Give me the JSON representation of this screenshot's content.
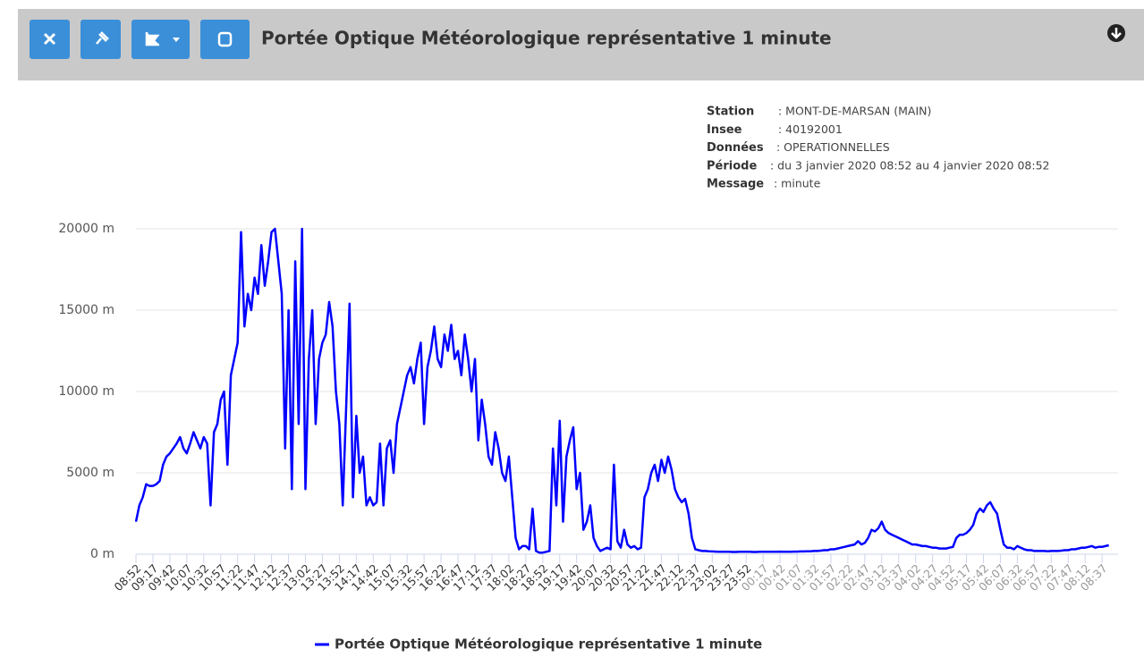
{
  "header": {
    "title": "Portée Optique Météorologique représentative 1 minute"
  },
  "info": [
    {
      "label": "Station",
      "value": ": MONT-DE-MARSAN (MAIN)"
    },
    {
      "label": "Insee",
      "value": ": 40192001"
    },
    {
      "label": "Données",
      "value": ": OPERATIONNELLES"
    },
    {
      "label": "Période",
      "value": ": du 3 janvier 2020 08:52 au 4 janvier 2020 08:52"
    },
    {
      "label": "Message",
      "value": ": minute"
    }
  ],
  "chart_data": {
    "type": "line",
    "categories": [
      "08:52",
      null,
      null,
      null,
      null,
      "09:17",
      null,
      null,
      null,
      null,
      "09:42",
      null,
      null,
      null,
      null,
      "10:07",
      null,
      null,
      null,
      null,
      "10:32",
      null,
      null,
      null,
      null,
      "10:57",
      null,
      null,
      null,
      null,
      "11:22",
      null,
      null,
      null,
      null,
      "11:47",
      null,
      null,
      null,
      null,
      "12:12",
      null,
      null,
      null,
      null,
      "12:37",
      null,
      null,
      null,
      null,
      "13:02",
      null,
      null,
      null,
      null,
      "13:27",
      null,
      null,
      null,
      null,
      "13:52",
      null,
      null,
      null,
      null,
      "14:17",
      null,
      null,
      null,
      null,
      "14:42",
      null,
      null,
      null,
      null,
      "15:07",
      null,
      null,
      null,
      null,
      "15:32",
      null,
      null,
      null,
      null,
      "15:57",
      null,
      null,
      null,
      null,
      "16:22",
      null,
      null,
      null,
      null,
      "16:47",
      null,
      null,
      null,
      null,
      "17:12",
      null,
      null,
      null,
      null,
      "17:37",
      null,
      null,
      null,
      null,
      "18:02",
      null,
      null,
      null,
      null,
      "18:27",
      null,
      null,
      null,
      null,
      "18:52",
      null,
      null,
      null,
      null,
      "19:17",
      null,
      null,
      null,
      null,
      "19:42",
      null,
      null,
      null,
      null,
      "20:07",
      null,
      null,
      null,
      null,
      "20:32",
      null,
      null,
      null,
      null,
      "20:57",
      null,
      null,
      null,
      null,
      "21:22",
      null,
      null,
      null,
      null,
      "21:47",
      null,
      null,
      null,
      null,
      "22:12",
      null,
      null,
      null,
      null,
      "22:37",
      null,
      null,
      null,
      null,
      "23:02",
      null,
      null,
      null,
      null,
      "23:27",
      null,
      null,
      null,
      null,
      "23:52",
      null,
      null,
      null,
      null,
      "00:17",
      null,
      null,
      null,
      null,
      "00:42",
      null,
      null,
      null,
      null,
      "01:07",
      null,
      null,
      null,
      null,
      "01:32",
      null,
      null,
      null,
      null,
      "01:57",
      null,
      null,
      null,
      null,
      "02:22",
      null,
      null,
      null,
      null,
      "02:47",
      null,
      null,
      null,
      null,
      "03:12",
      null,
      null,
      null,
      null,
      "03:37",
      null,
      null,
      null,
      null,
      "04:02",
      null,
      null,
      null,
      null,
      "04:27",
      null,
      null,
      null,
      null,
      "04:52",
      null,
      null,
      null,
      null,
      "05:17",
      null,
      null,
      null,
      null,
      "05:42",
      null,
      null,
      null,
      null,
      "06:07",
      null,
      null,
      null,
      null,
      "06:32",
      null,
      null,
      null,
      null,
      "06:57",
      null,
      null,
      null,
      null,
      "07:22",
      null,
      null,
      null,
      null,
      "07:47",
      null,
      null,
      null,
      null,
      "08:12",
      null,
      null,
      null,
      null,
      "08:37",
      null,
      null
    ],
    "series": [
      {
        "name": "Portée Optique Météorologique représentative 1 minute",
        "color": "#0000ff",
        "values": [
          2000,
          3000,
          3500,
          4300,
          4200,
          4200,
          4300,
          4500,
          5500,
          6000,
          6200,
          6500,
          6800,
          7200,
          6500,
          6200,
          6800,
          7500,
          7000,
          6500,
          7200,
          6800,
          3000,
          7500,
          8000,
          9500,
          10000,
          5500,
          11000,
          12000,
          13000,
          19800,
          14000,
          16000,
          15000,
          17000,
          16000,
          19000,
          16500,
          18000,
          19800,
          20000,
          18000,
          16000,
          6500,
          15000,
          4000,
          18000,
          8000,
          20000,
          4000,
          12000,
          15000,
          8000,
          12000,
          13000,
          13500,
          15500,
          14000,
          10000,
          8000,
          3000,
          9000,
          15400,
          3500,
          8500,
          5000,
          6000,
          3000,
          3500,
          3000,
          3200,
          6800,
          3000,
          6500,
          7000,
          5000,
          8000,
          9000,
          10000,
          11000,
          11500,
          10500,
          12000,
          13000,
          8000,
          11500,
          12500,
          14000,
          12000,
          11500,
          13500,
          12500,
          14100,
          12000,
          12500,
          11000,
          13500,
          12000,
          10000,
          12000,
          7000,
          9500,
          8000,
          6000,
          5500,
          7500,
          6500,
          5000,
          4500,
          6000,
          3500,
          1000,
          300,
          500,
          500,
          300,
          2800,
          200,
          100,
          100,
          150,
          200,
          6500,
          3000,
          8200,
          2000,
          6000,
          7000,
          7800,
          4000,
          5000,
          1500,
          2000,
          3000,
          1000,
          500,
          200,
          300,
          400,
          300,
          5500,
          800,
          400,
          1500,
          600,
          400,
          500,
          300,
          400,
          3500,
          4000,
          5000,
          5500,
          4500,
          5800,
          5000,
          6000,
          5200,
          4000,
          3500,
          3200,
          3400,
          2500,
          1000,
          300,
          250,
          200,
          200,
          180,
          170,
          160,
          150,
          150,
          150,
          150,
          140,
          140,
          150,
          150,
          150,
          150,
          140,
          140,
          150,
          150,
          150,
          150,
          150,
          150,
          160,
          150,
          150,
          150,
          160,
          160,
          170,
          170,
          180,
          180,
          200,
          200,
          220,
          250,
          250,
          300,
          300,
          350,
          400,
          450,
          500,
          550,
          600,
          800,
          600,
          700,
          1000,
          1500,
          1400,
          1600,
          2000,
          1500,
          1300,
          1200,
          1100,
          1000,
          900,
          800,
          700,
          600,
          600,
          550,
          500,
          500,
          450,
          400,
          400,
          350,
          350,
          350,
          400,
          450,
          1000,
          1200,
          1200,
          1300,
          1500,
          1800,
          2500,
          2800,
          2600,
          3000,
          3200,
          2800,
          2500,
          1500,
          600,
          400,
          400,
          300,
          500,
          400,
          300,
          250,
          250,
          200,
          200,
          200,
          200,
          180,
          200,
          200,
          200,
          220,
          250,
          250,
          300,
          300,
          350,
          400,
          400,
          450,
          500,
          400,
          450,
          450,
          500,
          550
        ]
      }
    ],
    "ylim": [
      0,
      20000
    ],
    "yticks": [
      {
        "value": 0,
        "label": "0 m"
      },
      {
        "value": 5000,
        "label": "5000 m"
      },
      {
        "value": 10000,
        "label": "10000 m"
      },
      {
        "value": 15000,
        "label": "15000 m"
      },
      {
        "value": 20000,
        "label": "20000 m"
      }
    ],
    "grid": true,
    "legend": "bottom"
  }
}
